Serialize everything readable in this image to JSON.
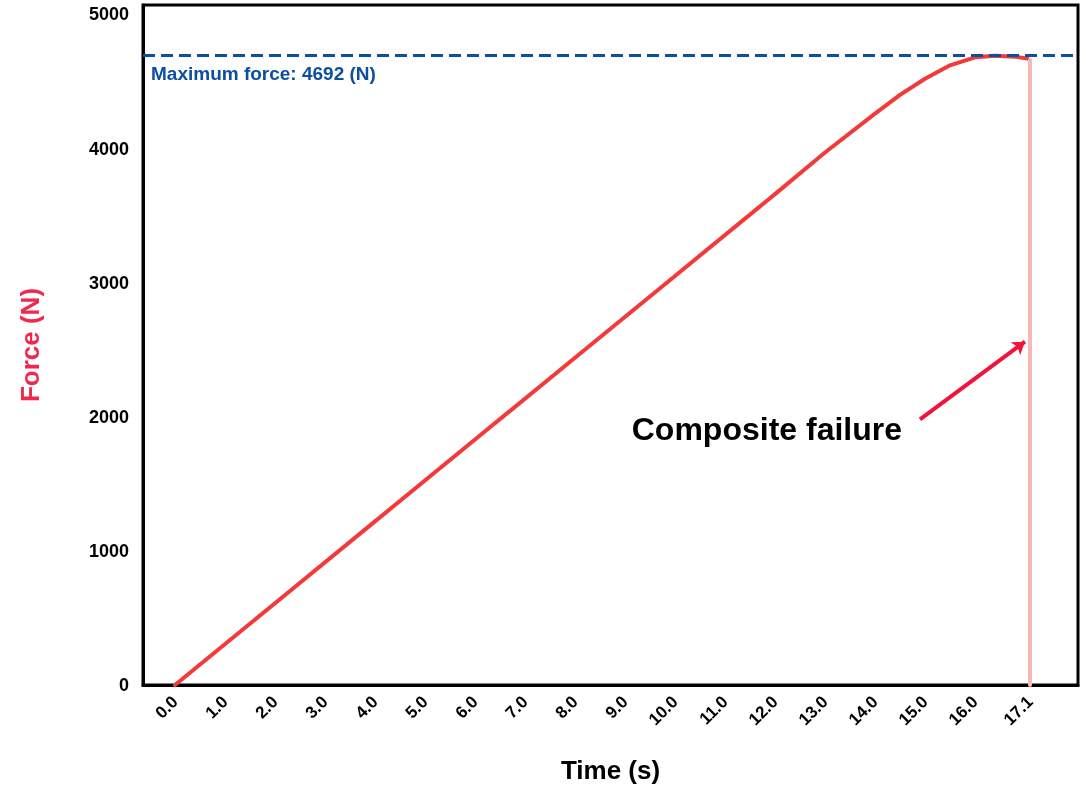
{
  "chart_data": {
    "type": "line",
    "xlabel": "Time (s)",
    "ylabel": "Force (N)",
    "xlim": [
      -0.64,
      18.06
    ],
    "ylim": [
      0,
      5070
    ],
    "xticks": [
      {
        "value": 0,
        "label": "0.0"
      },
      {
        "value": 1,
        "label": "1.0"
      },
      {
        "value": 2,
        "label": "2.0"
      },
      {
        "value": 3,
        "label": "3.0"
      },
      {
        "value": 4,
        "label": "4.0"
      },
      {
        "value": 5,
        "label": "5.0"
      },
      {
        "value": 6,
        "label": "6.0"
      },
      {
        "value": 7,
        "label": "7.0"
      },
      {
        "value": 8,
        "label": "8.0"
      },
      {
        "value": 9,
        "label": "9.0"
      },
      {
        "value": 10,
        "label": "10.0"
      },
      {
        "value": 11,
        "label": "11.0"
      },
      {
        "value": 12,
        "label": "12.0"
      },
      {
        "value": 13,
        "label": "13.0"
      },
      {
        "value": 14,
        "label": "14.0"
      },
      {
        "value": 15,
        "label": "15.0"
      },
      {
        "value": 16,
        "label": "16.0"
      },
      {
        "value": 17.1,
        "label": "17.1"
      }
    ],
    "yticks": [
      0,
      1000,
      2000,
      3000,
      4000,
      5000
    ],
    "grid": false,
    "marker": "none",
    "line_style": "solid",
    "series": [
      {
        "color": "#f23a3a",
        "x": [
          0,
          2,
          4,
          6,
          8,
          10,
          12,
          13,
          14,
          14.5,
          15,
          15.5,
          16,
          16.4,
          16.8,
          17.05
        ],
        "values": [
          0,
          610,
          1220,
          1830,
          2440,
          3050,
          3660,
          3970,
          4260,
          4400,
          4520,
          4620,
          4680,
          4692,
          4685,
          4670
        ]
      },
      {
        "color": "#f7b8b8",
        "x": [
          17.1,
          17.1
        ],
        "values": [
          4660,
          0
        ]
      }
    ],
    "ref_lines": [
      {
        "axis": "y",
        "value": 4692,
        "label": "Maximum force: 4692 (N)",
        "color": "#0b4ea2",
        "line_style": "dashed"
      }
    ],
    "annotations": [
      {
        "text": "Composite failure",
        "x": 17.0,
        "y": 2560
      }
    ]
  }
}
